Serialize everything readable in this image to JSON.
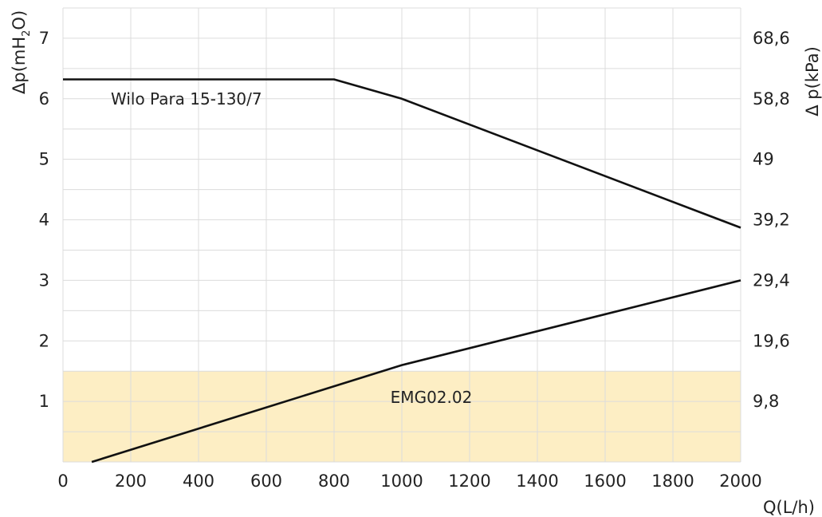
{
  "chart_data": {
    "type": "line",
    "x_label": "Q(L/h)",
    "y_label_left": {
      "prefix": "Δp(mH",
      "sub": "2",
      "suffix": "O)"
    },
    "y_label_right": "Δ p(kPa)",
    "xlim": [
      0,
      2000
    ],
    "ylim": [
      0,
      7.5
    ],
    "x_ticks": [
      0,
      200,
      400,
      600,
      800,
      1000,
      1200,
      1400,
      1600,
      1800,
      2000
    ],
    "x_tick_labels": [
      "0",
      "200",
      "400",
      "600",
      "800",
      "1000",
      "1200",
      "1400",
      "1600",
      "1800",
      "2000"
    ],
    "y_ticks_left": [
      1,
      2,
      3,
      4,
      5,
      6,
      7
    ],
    "y_tick_labels_left": [
      "1",
      "2",
      "3",
      "4",
      "5",
      "6",
      "7"
    ],
    "y_ticks_right": [
      1,
      2,
      3,
      4,
      5,
      6,
      7
    ],
    "y_tick_labels_right": [
      "9,8",
      "19,6",
      "29,4",
      "39,2",
      "49",
      "58,8",
      "68,6"
    ],
    "grid": true,
    "shaded_region": {
      "y_from": 0,
      "y_to": 1.5,
      "color": "#fdeec4",
      "label": "EMG02.02"
    },
    "series": [
      {
        "name": "Wilo Para 15-130/7",
        "x": [
          0,
          800,
          1000,
          2000
        ],
        "y": [
          6.32,
          6.32,
          6.0,
          3.87
        ],
        "color": "#111111"
      },
      {
        "name": "EMG02.02",
        "x": [
          85,
          1000,
          2000
        ],
        "y": [
          0.0,
          1.6,
          3.0
        ],
        "color": "#111111"
      }
    ]
  }
}
